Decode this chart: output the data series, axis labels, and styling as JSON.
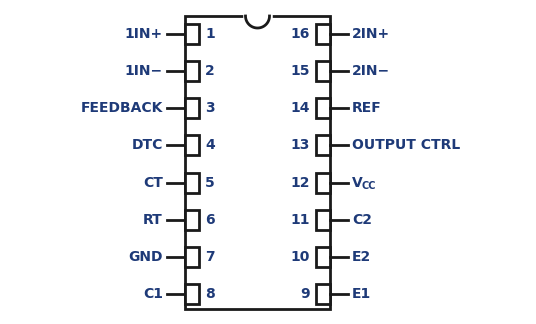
{
  "bg_color": "#ffffff",
  "text_color": "#1e3a78",
  "line_color": "#1a1a1a",
  "ic_color": "#ffffff",
  "left_pins": [
    {
      "num": "1",
      "label": "1IN+"
    },
    {
      "num": "2",
      "label": "1IN−"
    },
    {
      "num": "3",
      "label": "FEEDBACK"
    },
    {
      "num": "4",
      "label": "DTC"
    },
    {
      "num": "5",
      "label": "CT"
    },
    {
      "num": "6",
      "label": "RT"
    },
    {
      "num": "7",
      "label": "GND"
    },
    {
      "num": "8",
      "label": "C1"
    }
  ],
  "right_pins": [
    {
      "num": "16",
      "label": "2IN+",
      "vcc": false
    },
    {
      "num": "15",
      "label": "2IN−",
      "vcc": false
    },
    {
      "num": "14",
      "label": "REF",
      "vcc": false
    },
    {
      "num": "13",
      "label": "OUTPUT CTRL",
      "vcc": false
    },
    {
      "num": "12",
      "label": "VCC",
      "vcc": true
    },
    {
      "num": "11",
      "label": "C2",
      "vcc": false
    },
    {
      "num": "10",
      "label": "E2",
      "vcc": false
    },
    {
      "num": "9",
      "label": "E1",
      "vcc": false
    }
  ],
  "font_size_label": 10,
  "font_size_num": 10
}
